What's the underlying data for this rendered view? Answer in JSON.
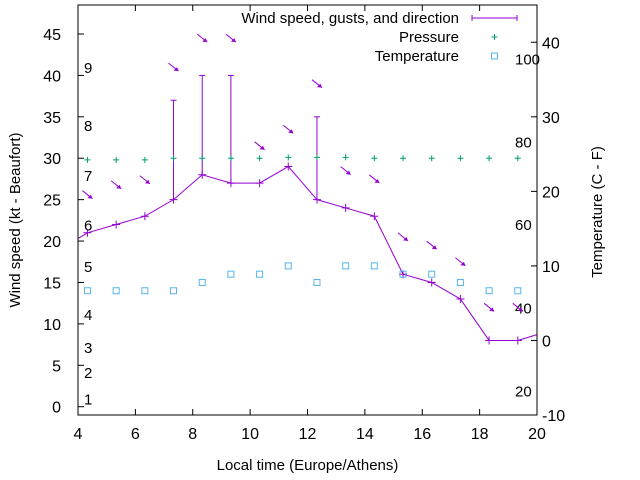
{
  "chart_data": {
    "type": "line",
    "xlabel": "Local time (Europe/Athens)",
    "ylabel": "Wind speed (kt - Beaufort)",
    "y2label": "Temperature (C - F)",
    "xlim": [
      4,
      20
    ],
    "ylim": [
      -1,
      48.5
    ],
    "y2lim": [
      -10,
      45
    ],
    "x_ticks": [
      4,
      6,
      8,
      10,
      12,
      14,
      16,
      18,
      20
    ],
    "y_ticks": [
      0,
      5,
      10,
      15,
      20,
      25,
      30,
      35,
      40,
      45
    ],
    "y2_ticks": [
      -10,
      0,
      10,
      20,
      30,
      40
    ],
    "legend_position": "top-right",
    "series": [
      {
        "name": "Wind speed, gusts, and direction",
        "color": "#9400d3",
        "x": [
          4,
          4.33,
          5.33,
          6.33,
          7.33,
          8.33,
          9.33,
          10.33,
          11.33,
          12.33,
          13.33,
          14.33,
          15.33,
          16.33,
          17.33,
          18.33,
          19.33,
          20
        ],
        "y": [
          20.3,
          21,
          22,
          23,
          25,
          28,
          27,
          27,
          29,
          25,
          24,
          23,
          16,
          15,
          13,
          8,
          8,
          8.7
        ]
      },
      {
        "name": "gusts",
        "color": "#9400d3",
        "x": [
          7.33,
          8.33,
          9.33,
          12.33
        ],
        "y": [
          37,
          40,
          40,
          35
        ]
      },
      {
        "name": "Pressure",
        "color": "#009e73",
        "x": [
          4.33,
          5.33,
          6.33,
          7.33,
          8.33,
          9.33,
          10.33,
          11.33,
          12.33,
          13.33,
          14.33,
          15.33,
          16.33,
          17.33,
          18.33,
          19.33
        ],
        "y": [
          29.8,
          29.8,
          29.8,
          30,
          30,
          30,
          30,
          30.1,
          30.1,
          30.1,
          30,
          30,
          30,
          30,
          30,
          30
        ]
      },
      {
        "name": "Temperature",
        "color": "#56b4e9",
        "x": [
          4.33,
          5.33,
          6.33,
          7.33,
          8.33,
          9.33,
          10.33,
          11.33,
          12.33,
          13.33,
          14.33,
          15.33,
          16.33,
          17.33,
          18.33,
          19.33
        ],
        "y": [
          14,
          14,
          14,
          14,
          15,
          16,
          16,
          17,
          15,
          17,
          17,
          16,
          16,
          15,
          14,
          14
        ]
      }
    ],
    "wind_direction_arrows": {
      "color": "#9400d3",
      "x": [
        4.33,
        5.33,
        6.33,
        7.33,
        8.33,
        9.33,
        10.33,
        11.33,
        12.33,
        13.33,
        14.33,
        15.33,
        16.33,
        17.33,
        18.33,
        19.33
      ],
      "y": [
        25.6,
        26.8,
        27.4,
        41,
        44.5,
        44.5,
        31.5,
        33.5,
        39,
        28.5,
        27.5,
        20.5,
        19.5,
        17.5,
        12,
        12
      ]
    },
    "beaufort_labels": [
      {
        "text": "1",
        "y": 1
      },
      {
        "text": "2",
        "y": 4.2
      },
      {
        "text": "3",
        "y": 7.2
      },
      {
        "text": "4",
        "y": 11.2
      },
      {
        "text": "5",
        "y": 17
      },
      {
        "text": "6",
        "y": 22
      },
      {
        "text": "7",
        "y": 28
      },
      {
        "text": "8",
        "y": 34
      },
      {
        "text": "9",
        "y": 41
      }
    ],
    "fahrenheit_labels": [
      {
        "text": "20",
        "y2": -6.7
      },
      {
        "text": "40",
        "y2": 4.4
      },
      {
        "text": "60",
        "y2": 15.6
      },
      {
        "text": "80",
        "y2": 26.7
      },
      {
        "text": "100",
        "y2": 37.8
      }
    ]
  }
}
